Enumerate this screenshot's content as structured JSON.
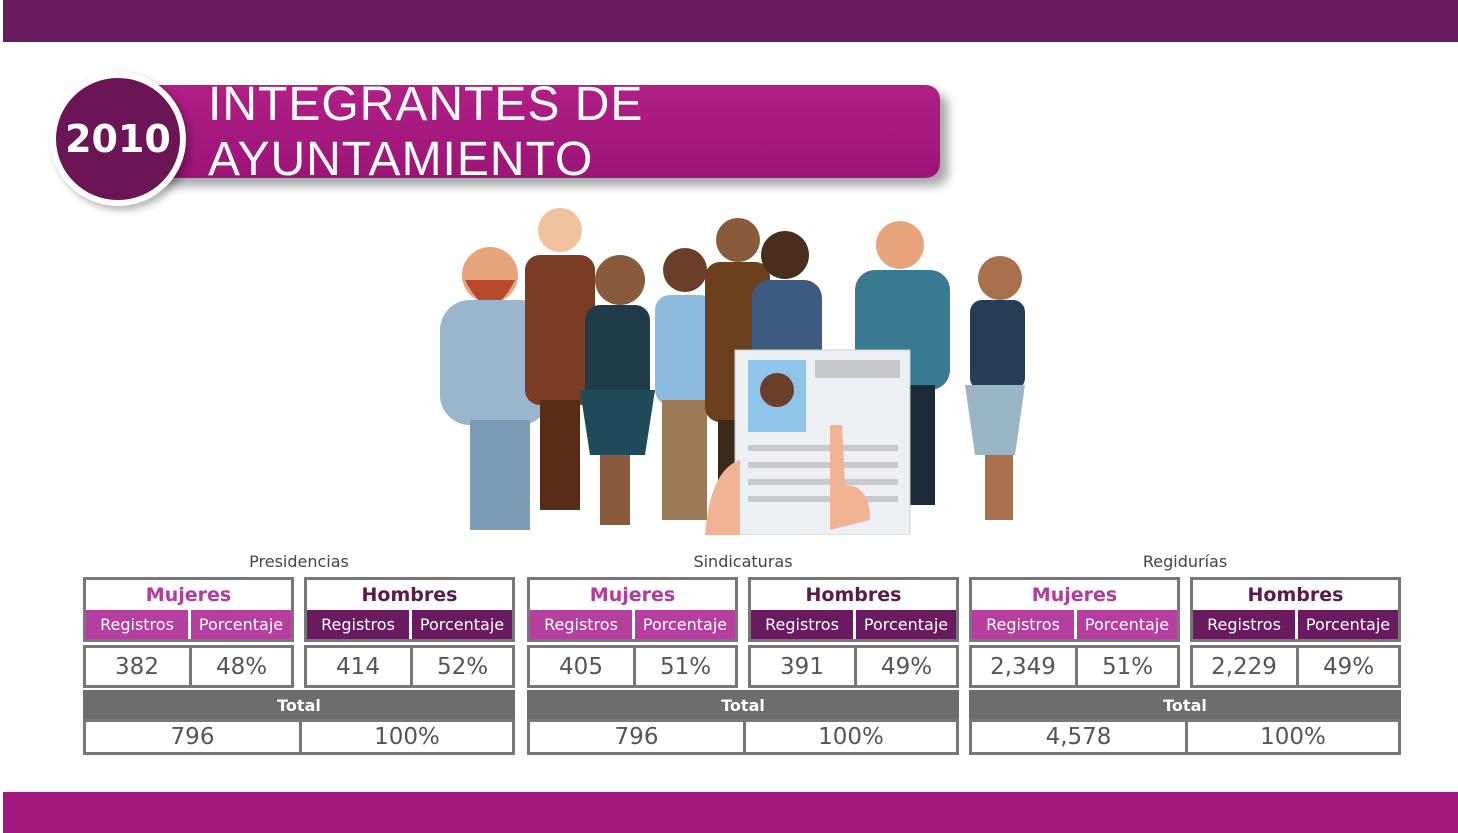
{
  "header": {
    "year": "2010",
    "title": "INTEGRANTES DE AYUNTAMIENTO"
  },
  "groups": [
    {
      "name": "Presidencias",
      "women": {
        "label": "Mujeres",
        "headers": [
          "Registros",
          "Porcentaje"
        ],
        "cells": [
          "382",
          "48%"
        ]
      },
      "men": {
        "label": "Hombres",
        "headers": [
          "Registros",
          "Porcentaje"
        ],
        "cells": [
          "414",
          "52%"
        ]
      },
      "total": {
        "label": "Total",
        "cells": [
          "796",
          "100%"
        ]
      }
    },
    {
      "name": "Sindicaturas",
      "women": {
        "label": "Mujeres",
        "headers": [
          "Registros",
          "Porcentaje"
        ],
        "cells": [
          "405",
          "51%"
        ]
      },
      "men": {
        "label": "Hombres",
        "headers": [
          "Registros",
          "Porcentaje"
        ],
        "cells": [
          "391",
          "49%"
        ]
      },
      "total": {
        "label": "Total",
        "cells": [
          "796",
          "100%"
        ]
      }
    },
    {
      "name": "Regidurías",
      "women": {
        "label": "Mujeres",
        "headers": [
          "Registros",
          "Porcentaje"
        ],
        "cells": [
          "2,349",
          "51%"
        ]
      },
      "men": {
        "label": "Hombres",
        "headers": [
          "Registros",
          "Porcentaje"
        ],
        "cells": [
          "2,229",
          "49%"
        ]
      },
      "total": {
        "label": "Total",
        "cells": [
          "4,578",
          "100%"
        ]
      }
    }
  ]
}
